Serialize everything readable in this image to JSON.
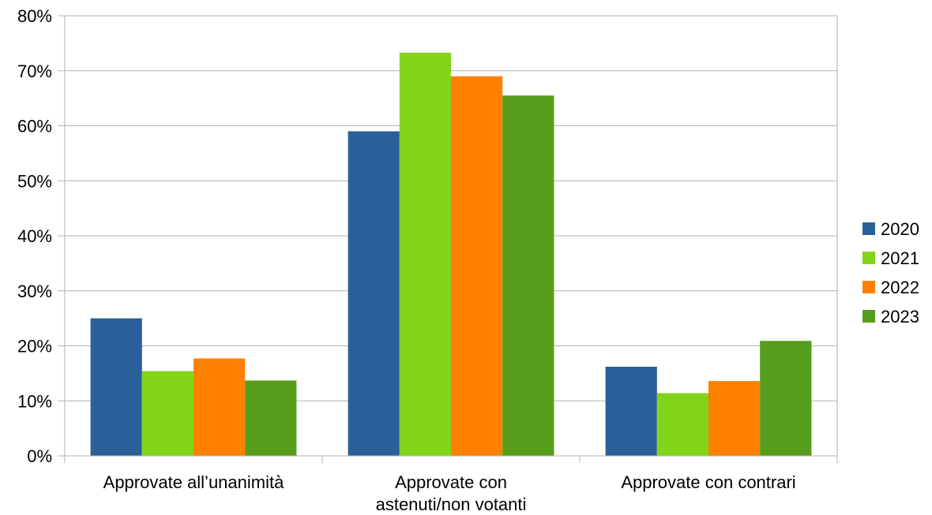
{
  "chart_data": {
    "type": "bar",
    "categories": [
      [
        "Approvate all’unanimità"
      ],
      [
        "Approvate con",
        "astenuti/non votanti"
      ],
      [
        "Approvate con contrari"
      ]
    ],
    "series": [
      {
        "name": "2020",
        "color": "#2a6099",
        "values": [
          25,
          59,
          16.2
        ]
      },
      {
        "name": "2021",
        "color": "#81d41a",
        "values": [
          15.4,
          73.3,
          11.4
        ]
      },
      {
        "name": "2022",
        "color": "#ff8000",
        "values": [
          17.7,
          69,
          13.6
        ]
      },
      {
        "name": "2023",
        "color": "#579d1c",
        "values": [
          13.7,
          65.5,
          20.9
        ]
      }
    ],
    "y_ticks": [
      "0%",
      "10%",
      "20%",
      "30%",
      "40%",
      "50%",
      "60%",
      "70%",
      "80%"
    ],
    "ylim": [
      0,
      80
    ],
    "grid": true,
    "legend_position": "right",
    "title": "",
    "xlabel": "",
    "ylabel": ""
  }
}
